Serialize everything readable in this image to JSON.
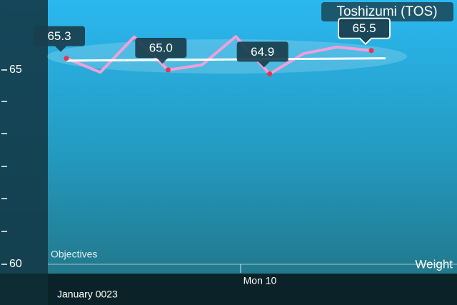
{
  "chart_data": {
    "type": "line",
    "title": "Toshizumi (TOS)",
    "categories": [
      null,
      null,
      null,
      null,
      null,
      null,
      null,
      null,
      null,
      null
    ],
    "values": [
      65.3,
      64.94,
      65.85,
      65.0,
      65.13,
      65.86,
      64.9,
      65.42,
      65.59,
      65.5
    ],
    "value_labels": [
      "65.3",
      null,
      null,
      "65.0",
      null,
      null,
      "64.9",
      null,
      null,
      "65.5"
    ],
    "color": "#f0a0d8",
    "trend": [
      65.24,
      65.3
    ],
    "ylim": [
      60,
      66.8
    ],
    "yticks": [
      60,
      65
    ],
    "x_tick_label": "Mon 10",
    "y_label": "Weight",
    "annotation": "Objectives",
    "footer": "January 0023"
  }
}
